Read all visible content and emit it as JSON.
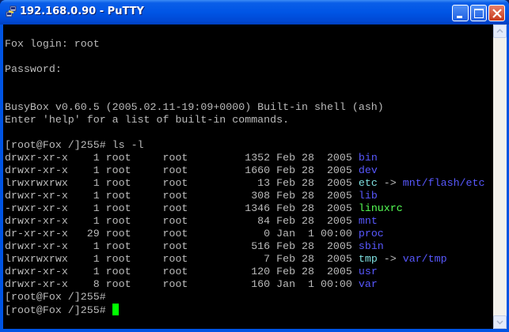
{
  "window": {
    "title": "192.168.0.90 - PuTTY",
    "icon": "putty-icon"
  },
  "colors": {
    "default": "#bbbbbb",
    "dir": "#5858ff",
    "link": "#7fe0e0",
    "exec": "#55ff55",
    "cursor": "#00ff00"
  },
  "terminal": {
    "lines": [
      [],
      [
        {
          "t": "Fox login: root"
        }
      ],
      [],
      [
        {
          "t": "Password:"
        }
      ],
      [],
      [],
      [
        {
          "t": "BusyBox v0.60.5 (2005.02.11-19:09+0000) Built-in shell (ash)"
        }
      ],
      [
        {
          "t": "Enter 'help' for a list of built-in commands."
        }
      ],
      [],
      [
        {
          "t": "[root@Fox /]255# ls -l"
        }
      ],
      [
        {
          "t": "drwxr-xr-x    1 root     root         1352 Feb 28  2005 "
        },
        {
          "t": "bin",
          "c": "dir"
        }
      ],
      [
        {
          "t": "drwxr-xr-x    1 root     root         1660 Feb 28  2005 "
        },
        {
          "t": "dev",
          "c": "dir"
        }
      ],
      [
        {
          "t": "lrwxrwxrwx    1 root     root           13 Feb 28  2005 "
        },
        {
          "t": "etc",
          "c": "link"
        },
        {
          "t": " -> "
        },
        {
          "t": "mnt/flash/etc",
          "c": "dir"
        }
      ],
      [
        {
          "t": "drwxr-xr-x    1 root     root          308 Feb 28  2005 "
        },
        {
          "t": "lib",
          "c": "dir"
        }
      ],
      [
        {
          "t": "-rwxr-xr-x    1 root     root         1346 Feb 28  2005 "
        },
        {
          "t": "linuxrc",
          "c": "exec"
        }
      ],
      [
        {
          "t": "drwxr-xr-x    1 root     root           84 Feb 28  2005 "
        },
        {
          "t": "mnt",
          "c": "dir"
        }
      ],
      [
        {
          "t": "dr-xr-xr-x   29 root     root            0 Jan  1 00:00 "
        },
        {
          "t": "proc",
          "c": "dir"
        }
      ],
      [
        {
          "t": "drwxr-xr-x    1 root     root          516 Feb 28  2005 "
        },
        {
          "t": "sbin",
          "c": "dir"
        }
      ],
      [
        {
          "t": "lrwxrwxrwx    1 root     root            7 Feb 28  2005 "
        },
        {
          "t": "tmp",
          "c": "link"
        },
        {
          "t": " -> "
        },
        {
          "t": "var/tmp",
          "c": "dir"
        }
      ],
      [
        {
          "t": "drwxr-xr-x    1 root     root          120 Feb 28  2005 "
        },
        {
          "t": "usr",
          "c": "dir"
        }
      ],
      [
        {
          "t": "drwxr-xr-x    8 root     root          160 Jan  1 00:00 "
        },
        {
          "t": "var",
          "c": "dir"
        }
      ],
      [
        {
          "t": "[root@Fox /]255#"
        }
      ],
      [
        {
          "t": "[root@Fox /]255# "
        },
        {
          "cursor": true
        }
      ]
    ]
  }
}
